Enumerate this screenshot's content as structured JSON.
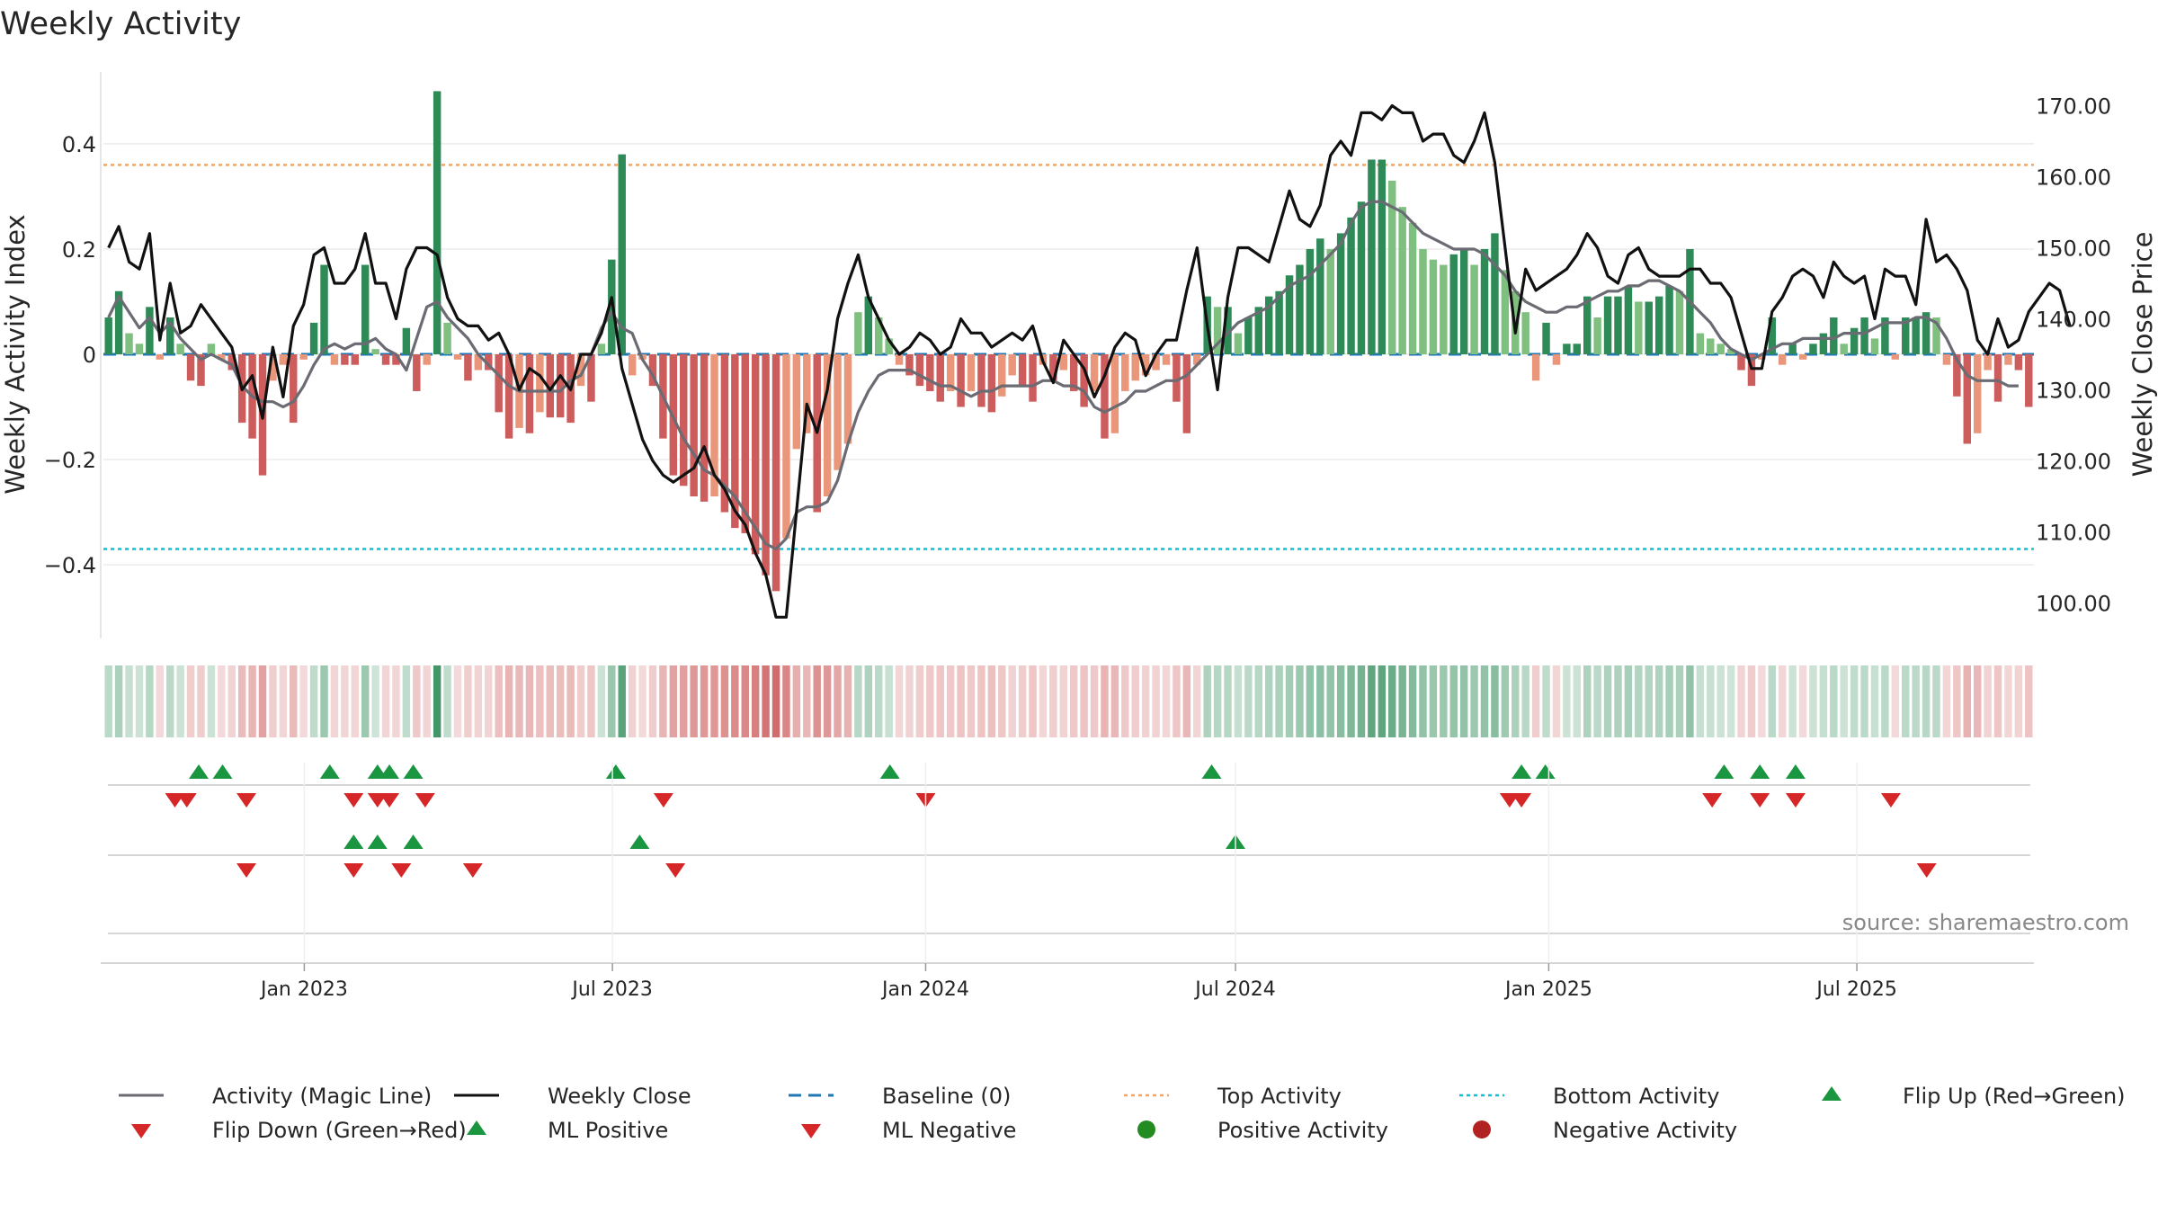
{
  "chart_data": {
    "type": "bar",
    "title": "Weekly Activity",
    "ylabel": "Weekly Activity Index",
    "y2label": "Weekly Close Price",
    "xlabel": "",
    "ylim": [
      -0.54,
      0.54
    ],
    "y2lim": [
      95.0,
      175.0
    ],
    "yticks": [
      -0.4,
      -0.2,
      0,
      0.2,
      0.4
    ],
    "ytick_labels": [
      "−0.4",
      "−0.2",
      "0",
      "0.2",
      "0.4"
    ],
    "y2ticks": [
      100,
      110,
      120,
      130,
      140,
      150,
      160,
      170
    ],
    "y2tick_labels": [
      "100.00",
      "110.00",
      "120.00",
      "130.00",
      "140.00",
      "150.00",
      "160.00",
      "170.00"
    ],
    "x_start": "2022-09-05",
    "x_end": "2025-10-13",
    "xticks": [
      {
        "date": "2023-01-01",
        "label": "Jan 2023"
      },
      {
        "date": "2023-07-01",
        "label": "Jul 2023"
      },
      {
        "date": "2024-01-01",
        "label": "Jan 2024"
      },
      {
        "date": "2024-07-01",
        "label": "Jul 2024"
      },
      {
        "date": "2025-01-01",
        "label": "Jan 2025"
      },
      {
        "date": "2025-07-01",
        "label": "Jul 2025"
      }
    ],
    "top_activity": 0.36,
    "bottom_activity": -0.37,
    "activity": [
      0.07,
      0.12,
      0.04,
      0.02,
      0.09,
      -0.01,
      0.07,
      0.02,
      -0.05,
      -0.06,
      0.02,
      -0.01,
      -0.03,
      -0.13,
      -0.16,
      -0.23,
      -0.05,
      -0.02,
      -0.13,
      -0.01,
      0.06,
      0.17,
      -0.02,
      -0.02,
      -0.02,
      0.17,
      0.01,
      -0.02,
      -0.02,
      0.05,
      -0.07,
      -0.02,
      0.5,
      0.06,
      -0.01,
      -0.05,
      -0.03,
      -0.03,
      -0.11,
      -0.16,
      -0.14,
      -0.15,
      -0.11,
      -0.12,
      -0.12,
      -0.13,
      -0.06,
      -0.09,
      0.02,
      0.18,
      0.38,
      -0.04,
      -0.01,
      -0.06,
      -0.16,
      -0.23,
      -0.25,
      -0.27,
      -0.28,
      -0.27,
      -0.3,
      -0.33,
      -0.34,
      -0.38,
      -0.42,
      -0.45,
      -0.35,
      -0.18,
      -0.15,
      -0.3,
      -0.27,
      -0.22,
      -0.17,
      0.08,
      0.11,
      0.07,
      0.03,
      -0.02,
      -0.04,
      -0.06,
      -0.07,
      -0.09,
      -0.07,
      -0.1,
      -0.07,
      -0.1,
      -0.11,
      -0.08,
      -0.04,
      -0.06,
      -0.09,
      -0.02,
      -0.05,
      -0.03,
      -0.07,
      -0.1,
      -0.07,
      -0.16,
      -0.15,
      -0.07,
      -0.05,
      -0.04,
      -0.03,
      -0.02,
      -0.09,
      -0.15,
      -0.02,
      0.11,
      0.09,
      0.09,
      0.04,
      0.07,
      0.09,
      0.11,
      0.12,
      0.15,
      0.17,
      0.2,
      0.22,
      0.2,
      0.23,
      0.26,
      0.29,
      0.37,
      0.37,
      0.33,
      0.28,
      0.25,
      0.2,
      0.18,
      0.17,
      0.19,
      0.2,
      0.17,
      0.2,
      0.23,
      0.16,
      0.12,
      0.08,
      -0.05,
      0.06,
      -0.02,
      0.02,
      0.02,
      0.11,
      0.07,
      0.11,
      0.11,
      0.13,
      0.1,
      0.1,
      0.11,
      0.13,
      0.12,
      0.2,
      0.04,
      0.03,
      0.02,
      0.01,
      -0.03,
      -0.06,
      -0.01,
      0.07,
      -0.02,
      0.02,
      -0.01,
      0.02,
      0.04,
      0.07,
      0.02,
      0.05,
      0.07,
      0.03,
      0.07,
      -0.01,
      0.07,
      0.07,
      0.08,
      0.07,
      -0.02,
      -0.08,
      -0.17,
      -0.15,
      -0.03,
      -0.09,
      -0.02,
      -0.03,
      -0.1
    ],
    "magic_line": [
      0.07,
      0.11,
      0.08,
      0.05,
      0.07,
      0.04,
      0.06,
      0.03,
      0.01,
      -0.01,
      0.0,
      -0.01,
      -0.02,
      -0.06,
      -0.08,
      -0.09,
      -0.09,
      -0.1,
      -0.09,
      -0.06,
      -0.02,
      0.01,
      0.02,
      0.01,
      0.02,
      0.02,
      0.03,
      0.01,
      0.0,
      -0.03,
      0.03,
      0.09,
      0.1,
      0.07,
      0.05,
      0.03,
      -0.0,
      -0.02,
      -0.04,
      -0.06,
      -0.07,
      -0.07,
      -0.07,
      -0.07,
      -0.07,
      -0.05,
      -0.04,
      0.0,
      0.05,
      0.08,
      0.05,
      0.04,
      -0.01,
      -0.04,
      -0.08,
      -0.12,
      -0.16,
      -0.19,
      -0.22,
      -0.23,
      -0.25,
      -0.27,
      -0.3,
      -0.33,
      -0.36,
      -0.37,
      -0.35,
      -0.3,
      -0.29,
      -0.29,
      -0.28,
      -0.24,
      -0.17,
      -0.11,
      -0.07,
      -0.04,
      -0.03,
      -0.03,
      -0.03,
      -0.04,
      -0.05,
      -0.06,
      -0.06,
      -0.07,
      -0.08,
      -0.07,
      -0.07,
      -0.06,
      -0.06,
      -0.06,
      -0.06,
      -0.05,
      -0.05,
      -0.06,
      -0.06,
      -0.07,
      -0.1,
      -0.11,
      -0.1,
      -0.09,
      -0.07,
      -0.07,
      -0.06,
      -0.05,
      -0.05,
      -0.04,
      -0.02,
      0.0,
      0.02,
      0.04,
      0.06,
      0.07,
      0.08,
      0.09,
      0.11,
      0.13,
      0.14,
      0.15,
      0.17,
      0.19,
      0.21,
      0.25,
      0.28,
      0.29,
      0.29,
      0.28,
      0.27,
      0.25,
      0.23,
      0.22,
      0.21,
      0.2,
      0.2,
      0.2,
      0.19,
      0.17,
      0.15,
      0.12,
      0.1,
      0.09,
      0.08,
      0.08,
      0.09,
      0.09,
      0.1,
      0.11,
      0.12,
      0.12,
      0.13,
      0.13,
      0.14,
      0.14,
      0.13,
      0.12,
      0.1,
      0.08,
      0.06,
      0.03,
      0.01,
      -0.0,
      -0.01,
      0.0,
      0.01,
      0.02,
      0.02,
      0.03,
      0.03,
      0.03,
      0.03,
      0.04,
      0.04,
      0.04,
      0.05,
      0.06,
      0.06,
      0.06,
      0.07,
      0.07,
      0.06,
      0.03,
      -0.01,
      -0.04,
      -0.05,
      -0.05,
      -0.05,
      -0.06,
      -0.06
    ],
    "weekly_close": [
      150,
      153,
      148,
      147,
      152,
      137,
      145,
      138,
      139,
      142,
      140,
      138,
      136,
      130,
      132,
      126,
      136,
      129,
      139,
      142,
      149,
      150,
      145,
      145,
      147,
      152,
      145,
      145,
      140,
      147,
      150,
      150,
      149,
      143,
      140,
      139,
      139,
      137,
      138,
      135,
      130,
      133,
      132,
      130,
      132,
      130,
      135,
      135,
      138,
      143,
      133,
      128,
      123,
      120,
      118,
      117,
      118,
      119,
      122,
      118,
      116,
      113,
      111,
      107,
      104,
      98,
      98,
      113,
      128,
      124,
      130,
      140,
      145,
      149,
      143,
      140,
      137,
      135,
      136,
      138,
      137,
      135,
      136,
      140,
      138,
      138,
      136,
      137,
      138,
      137,
      139,
      134,
      131,
      137,
      135,
      133,
      129,
      132,
      136,
      138,
      137,
      132,
      135,
      137,
      137,
      144,
      150,
      139,
      130,
      143,
      150,
      150,
      149,
      148,
      153,
      158,
      154,
      153,
      156,
      163,
      165,
      163,
      169,
      169,
      168,
      170,
      169,
      169,
      165,
      166,
      166,
      163,
      162,
      165,
      169,
      162,
      150,
      138,
      147,
      144,
      145,
      146,
      147,
      149,
      152,
      150,
      146,
      145,
      149,
      150,
      147,
      146,
      146,
      146,
      147,
      147,
      145,
      145,
      143,
      138,
      133,
      133,
      141,
      143,
      146,
      147,
      146,
      143,
      148,
      146,
      145,
      146,
      140,
      147,
      146,
      146,
      142,
      154,
      148,
      149,
      147,
      144,
      137,
      135,
      140,
      136,
      137,
      141,
      143,
      145,
      144,
      139
    ],
    "flip_up": [
      "2022-10-31",
      "2022-11-14",
      "2023-01-16",
      "2023-02-13",
      "2023-02-20",
      "2023-03-06",
      "2023-07-03",
      "2023-12-11",
      "2024-06-17",
      "2024-12-16",
      "2024-12-30",
      "2025-04-14",
      "2025-05-05",
      "2025-05-26"
    ],
    "flip_down": [
      "2022-10-17",
      "2022-10-24",
      "2022-11-28",
      "2023-01-30",
      "2023-02-13",
      "2023-02-20",
      "2023-03-13",
      "2023-07-31",
      "2024-01-01",
      "2024-12-09",
      "2024-12-16",
      "2025-04-07",
      "2025-05-05",
      "2025-05-26",
      "2025-07-21"
    ],
    "ml_positive": [
      "2023-01-30",
      "2023-02-13",
      "2023-03-06",
      "2023-07-17",
      "2024-07-01"
    ],
    "ml_negative": [
      "2022-11-28",
      "2023-01-30",
      "2023-02-27",
      "2023-04-10",
      "2023-08-07",
      "2025-08-11"
    ],
    "source": "source: sharemaestro.com",
    "legend": [
      {
        "key": "magic",
        "label": "Activity (Magic Line)"
      },
      {
        "key": "close",
        "label": "Weekly Close"
      },
      {
        "key": "baseline",
        "label": "Baseline (0)"
      },
      {
        "key": "top",
        "label": "Top Activity"
      },
      {
        "key": "bottom",
        "label": "Bottom Activity"
      },
      {
        "key": "flipup",
        "label": "Flip Up (Red→Green)"
      },
      {
        "key": "flipdown",
        "label": "Flip Down (Green→Red)"
      },
      {
        "key": "mlpos",
        "label": "ML Positive"
      },
      {
        "key": "mlneg",
        "label": "ML Negative"
      },
      {
        "key": "posdot",
        "label": "Positive Activity"
      },
      {
        "key": "negdot",
        "label": "Negative Activity"
      }
    ],
    "colors": {
      "pos_strong": "#2e8b57",
      "pos_light": "#7fbf7f",
      "neg_strong": "#cd5c5c",
      "neg_light": "#e9967a",
      "magic": "#6b6b73",
      "close": "#111111",
      "baseline": "#1f77b4",
      "top": "#f4a460",
      "bottom": "#17becf",
      "up": "#1a9641",
      "down": "#d62728",
      "posdot": "#228b22",
      "negdot": "#b22222"
    }
  }
}
